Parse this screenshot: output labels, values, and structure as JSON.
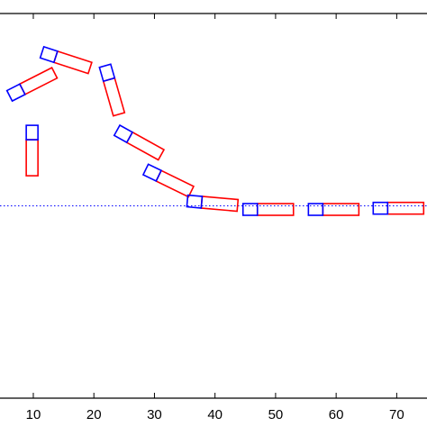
{
  "chart_data": {
    "type": "scatter",
    "title": "",
    "xlabel": "",
    "ylabel": "",
    "xlim": [
      4.5,
      75
    ],
    "ylim": [
      -1.6,
      1.6
    ],
    "grid": false,
    "legend": "none",
    "x_ticks": [
      10,
      20,
      30,
      40,
      50,
      60,
      70
    ],
    "x_tick_labels": [
      "10",
      "20",
      "30",
      "40",
      "50",
      "60",
      "70"
    ],
    "reference_line": {
      "y": 0.0,
      "color": "#0000ff",
      "style": "dotted"
    },
    "colors": {
      "body": "#ff0000",
      "head": "#0000ff",
      "axes": "#000000"
    },
    "series": [
      {
        "values": [
          {
            "x": 9.8,
            "y": 0.55,
            "angle_deg": 90
          },
          {
            "x": 8.2,
            "y": 0.97,
            "angle_deg": -27
          },
          {
            "x": 13.7,
            "y": 1.24,
            "angle_deg": 18
          },
          {
            "x": 22.5,
            "y": 1.05,
            "angle_deg": 74
          },
          {
            "x": 25.9,
            "y": 0.57,
            "angle_deg": 29
          },
          {
            "x": 30.7,
            "y": 0.25,
            "angle_deg": 26
          },
          {
            "x": 37.8,
            "y": 0.03,
            "angle_deg": 5
          },
          {
            "x": 47.0,
            "y": -0.03,
            "angle_deg": 0
          },
          {
            "x": 57.8,
            "y": -0.03,
            "angle_deg": 0
          },
          {
            "x": 68.5,
            "y": -0.02,
            "angle_deg": 0
          }
        ]
      }
    ]
  }
}
